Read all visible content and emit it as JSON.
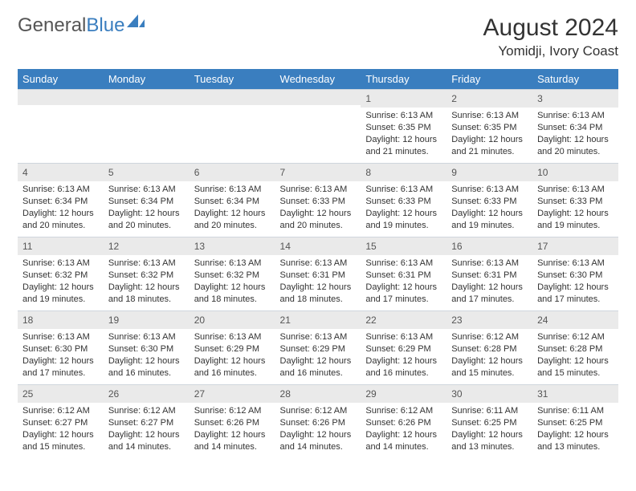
{
  "logo": {
    "text1": "General",
    "text2": "Blue"
  },
  "title": {
    "month": "August 2024",
    "location": "Yomidji, Ivory Coast"
  },
  "colors": {
    "header_bg": "#3a7ebf",
    "daynum_bg": "#eaeaea",
    "text": "#333333"
  },
  "weekdays": [
    "Sunday",
    "Monday",
    "Tuesday",
    "Wednesday",
    "Thursday",
    "Friday",
    "Saturday"
  ],
  "weeks": [
    [
      {
        "n": "",
        "lines": []
      },
      {
        "n": "",
        "lines": []
      },
      {
        "n": "",
        "lines": []
      },
      {
        "n": "",
        "lines": []
      },
      {
        "n": "1",
        "lines": [
          "Sunrise: 6:13 AM",
          "Sunset: 6:35 PM",
          "Daylight: 12 hours and 21 minutes."
        ]
      },
      {
        "n": "2",
        "lines": [
          "Sunrise: 6:13 AM",
          "Sunset: 6:35 PM",
          "Daylight: 12 hours and 21 minutes."
        ]
      },
      {
        "n": "3",
        "lines": [
          "Sunrise: 6:13 AM",
          "Sunset: 6:34 PM",
          "Daylight: 12 hours and 20 minutes."
        ]
      }
    ],
    [
      {
        "n": "4",
        "lines": [
          "Sunrise: 6:13 AM",
          "Sunset: 6:34 PM",
          "Daylight: 12 hours and 20 minutes."
        ]
      },
      {
        "n": "5",
        "lines": [
          "Sunrise: 6:13 AM",
          "Sunset: 6:34 PM",
          "Daylight: 12 hours and 20 minutes."
        ]
      },
      {
        "n": "6",
        "lines": [
          "Sunrise: 6:13 AM",
          "Sunset: 6:34 PM",
          "Daylight: 12 hours and 20 minutes."
        ]
      },
      {
        "n": "7",
        "lines": [
          "Sunrise: 6:13 AM",
          "Sunset: 6:33 PM",
          "Daylight: 12 hours and 20 minutes."
        ]
      },
      {
        "n": "8",
        "lines": [
          "Sunrise: 6:13 AM",
          "Sunset: 6:33 PM",
          "Daylight: 12 hours and 19 minutes."
        ]
      },
      {
        "n": "9",
        "lines": [
          "Sunrise: 6:13 AM",
          "Sunset: 6:33 PM",
          "Daylight: 12 hours and 19 minutes."
        ]
      },
      {
        "n": "10",
        "lines": [
          "Sunrise: 6:13 AM",
          "Sunset: 6:33 PM",
          "Daylight: 12 hours and 19 minutes."
        ]
      }
    ],
    [
      {
        "n": "11",
        "lines": [
          "Sunrise: 6:13 AM",
          "Sunset: 6:32 PM",
          "Daylight: 12 hours and 19 minutes."
        ]
      },
      {
        "n": "12",
        "lines": [
          "Sunrise: 6:13 AM",
          "Sunset: 6:32 PM",
          "Daylight: 12 hours and 18 minutes."
        ]
      },
      {
        "n": "13",
        "lines": [
          "Sunrise: 6:13 AM",
          "Sunset: 6:32 PM",
          "Daylight: 12 hours and 18 minutes."
        ]
      },
      {
        "n": "14",
        "lines": [
          "Sunrise: 6:13 AM",
          "Sunset: 6:31 PM",
          "Daylight: 12 hours and 18 minutes."
        ]
      },
      {
        "n": "15",
        "lines": [
          "Sunrise: 6:13 AM",
          "Sunset: 6:31 PM",
          "Daylight: 12 hours and 17 minutes."
        ]
      },
      {
        "n": "16",
        "lines": [
          "Sunrise: 6:13 AM",
          "Sunset: 6:31 PM",
          "Daylight: 12 hours and 17 minutes."
        ]
      },
      {
        "n": "17",
        "lines": [
          "Sunrise: 6:13 AM",
          "Sunset: 6:30 PM",
          "Daylight: 12 hours and 17 minutes."
        ]
      }
    ],
    [
      {
        "n": "18",
        "lines": [
          "Sunrise: 6:13 AM",
          "Sunset: 6:30 PM",
          "Daylight: 12 hours and 17 minutes."
        ]
      },
      {
        "n": "19",
        "lines": [
          "Sunrise: 6:13 AM",
          "Sunset: 6:30 PM",
          "Daylight: 12 hours and 16 minutes."
        ]
      },
      {
        "n": "20",
        "lines": [
          "Sunrise: 6:13 AM",
          "Sunset: 6:29 PM",
          "Daylight: 12 hours and 16 minutes."
        ]
      },
      {
        "n": "21",
        "lines": [
          "Sunrise: 6:13 AM",
          "Sunset: 6:29 PM",
          "Daylight: 12 hours and 16 minutes."
        ]
      },
      {
        "n": "22",
        "lines": [
          "Sunrise: 6:13 AM",
          "Sunset: 6:29 PM",
          "Daylight: 12 hours and 16 minutes."
        ]
      },
      {
        "n": "23",
        "lines": [
          "Sunrise: 6:12 AM",
          "Sunset: 6:28 PM",
          "Daylight: 12 hours and 15 minutes."
        ]
      },
      {
        "n": "24",
        "lines": [
          "Sunrise: 6:12 AM",
          "Sunset: 6:28 PM",
          "Daylight: 12 hours and 15 minutes."
        ]
      }
    ],
    [
      {
        "n": "25",
        "lines": [
          "Sunrise: 6:12 AM",
          "Sunset: 6:27 PM",
          "Daylight: 12 hours and 15 minutes."
        ]
      },
      {
        "n": "26",
        "lines": [
          "Sunrise: 6:12 AM",
          "Sunset: 6:27 PM",
          "Daylight: 12 hours and 14 minutes."
        ]
      },
      {
        "n": "27",
        "lines": [
          "Sunrise: 6:12 AM",
          "Sunset: 6:26 PM",
          "Daylight: 12 hours and 14 minutes."
        ]
      },
      {
        "n": "28",
        "lines": [
          "Sunrise: 6:12 AM",
          "Sunset: 6:26 PM",
          "Daylight: 12 hours and 14 minutes."
        ]
      },
      {
        "n": "29",
        "lines": [
          "Sunrise: 6:12 AM",
          "Sunset: 6:26 PM",
          "Daylight: 12 hours and 14 minutes."
        ]
      },
      {
        "n": "30",
        "lines": [
          "Sunrise: 6:11 AM",
          "Sunset: 6:25 PM",
          "Daylight: 12 hours and 13 minutes."
        ]
      },
      {
        "n": "31",
        "lines": [
          "Sunrise: 6:11 AM",
          "Sunset: 6:25 PM",
          "Daylight: 12 hours and 13 minutes."
        ]
      }
    ]
  ]
}
